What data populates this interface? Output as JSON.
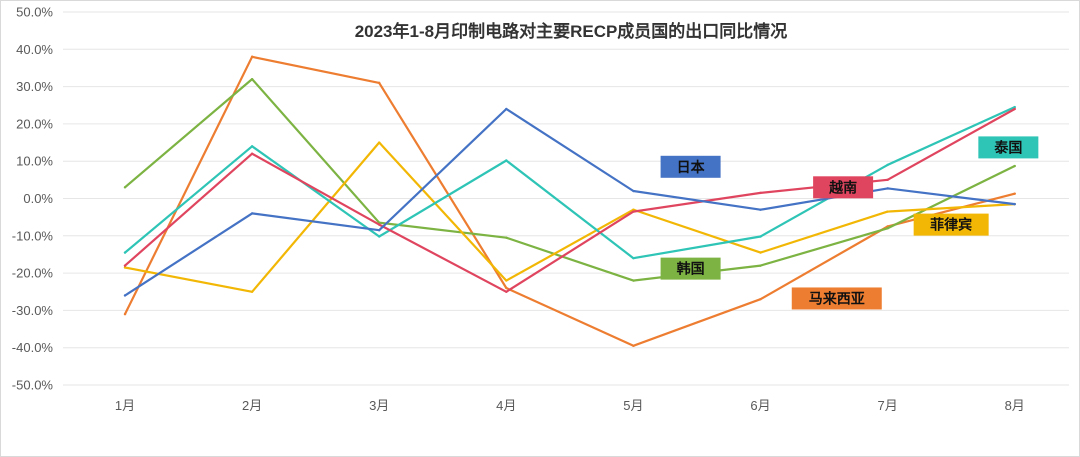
{
  "chart_data": {
    "type": "line",
    "title": "2023年1-8月印制电路对主要RECP成员国的出口同比情况",
    "xlabel": "",
    "ylabel": "",
    "categories": [
      "1月",
      "2月",
      "3月",
      "4月",
      "5月",
      "6月",
      "7月",
      "8月"
    ],
    "ylim": [
      -50,
      50
    ],
    "yticks": [
      50,
      40,
      30,
      20,
      10,
      0,
      -10,
      -20,
      -30,
      -40,
      -50
    ],
    "ytick_labels": [
      "50.0%",
      "40.0%",
      "30.0%",
      "20.0%",
      "10.0%",
      "0.0%",
      "-10.0%",
      "-20.0%",
      "-30.0%",
      "-40.0%",
      "-50.0%"
    ],
    "grid": true,
    "legend": "inline-labels",
    "series": [
      {
        "name": "日本",
        "color": "#4472C4",
        "values": [
          -26,
          -4,
          -8.5,
          24,
          2,
          -3,
          2.7,
          -1.5
        ],
        "label_at": [
          4.45,
          8.5
        ]
      },
      {
        "name": "越南",
        "color": "#E0455F",
        "values": [
          -18,
          12,
          -7,
          -25,
          -3.5,
          1.5,
          5,
          24
        ],
        "label_at": [
          5.65,
          3
        ]
      },
      {
        "name": "泰国",
        "color": "#2EC4B6",
        "values": [
          -14.5,
          14,
          -10.2,
          10.2,
          -16,
          -10.2,
          9,
          24.5
        ],
        "label_at": [
          6.95,
          13.7
        ]
      },
      {
        "name": "菲律宾",
        "color": "#F2B705",
        "values": [
          -18.5,
          -25,
          15,
          -22,
          -3,
          -14.5,
          -3.5,
          -1.5
        ],
        "label_at": [
          6.5,
          -7
        ]
      },
      {
        "name": "韩国",
        "color": "#7CB342",
        "values": [
          3,
          32,
          -6.5,
          -10.5,
          -22,
          -18,
          -8,
          8.7
        ],
        "label_at": [
          4.45,
          -18.8
        ]
      },
      {
        "name": "马来西亚",
        "color": "#ED7D31",
        "values": [
          -31,
          38,
          31,
          -24,
          -39.5,
          -27,
          -7.5,
          1.3
        ],
        "label_at": [
          5.6,
          -26.8
        ]
      }
    ]
  }
}
